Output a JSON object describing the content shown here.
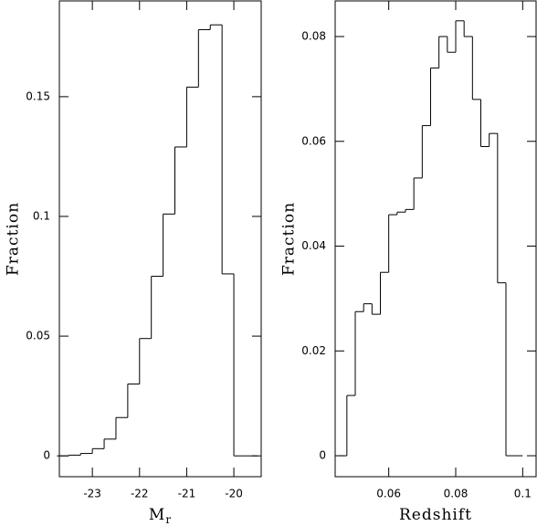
{
  "chart_data": [
    {
      "type": "histogram",
      "xlabel": "M",
      "xlabel_subscript": "r",
      "ylabel": "Fraction",
      "bins": [
        -23.75,
        -23.5,
        -23.25,
        -23,
        -22.75,
        -22.5,
        -22.25,
        -22,
        -21.75,
        -21.5,
        -21.25,
        -21,
        -20.75,
        -20.5,
        -20.25,
        -20,
        -19.75,
        -19.5
      ],
      "values": [
        0,
        0.0003,
        0.001,
        0.003,
        0.007,
        0.016,
        0.03,
        0.049,
        0.075,
        0.101,
        0.129,
        0.154,
        0.178,
        0.18,
        0.076,
        0,
        0
      ],
      "color": "#000000",
      "xlim": [
        -23.7,
        -19.42
      ],
      "xticks": [
        -23,
        -22,
        -21,
        -20
      ],
      "ylim": [
        -0.0087,
        0.19
      ],
      "yticks": [
        0,
        0.05,
        0.1,
        0.15
      ]
    },
    {
      "type": "histogram",
      "xlabel": "Redshift",
      "ylabel": "Fraction",
      "bins": [
        0.045,
        0.0475,
        0.05,
        0.0525,
        0.055,
        0.0575,
        0.06,
        0.0625,
        0.065,
        0.0675,
        0.07,
        0.0725,
        0.075,
        0.0775,
        0.08,
        0.0825,
        0.085,
        0.0875,
        0.09,
        0.0925,
        0.095,
        0.0975,
        0.1
      ],
      "values": [
        0,
        0.0115,
        0.0275,
        0.029,
        0.027,
        0.035,
        0.046,
        0.0465,
        0.047,
        0.053,
        0.063,
        0.074,
        0.08,
        0.077,
        0.083,
        0.08,
        0.068,
        0.059,
        0.0615,
        0.033,
        0,
        0
      ],
      "color": "#000000",
      "xlim": [
        0.044,
        0.104
      ],
      "xticks": [
        0.06,
        0.08,
        0.1
      ],
      "ylim": [
        -0.004,
        0.0868
      ],
      "yticks": [
        0,
        0.02,
        0.04,
        0.06,
        0.08
      ]
    }
  ]
}
